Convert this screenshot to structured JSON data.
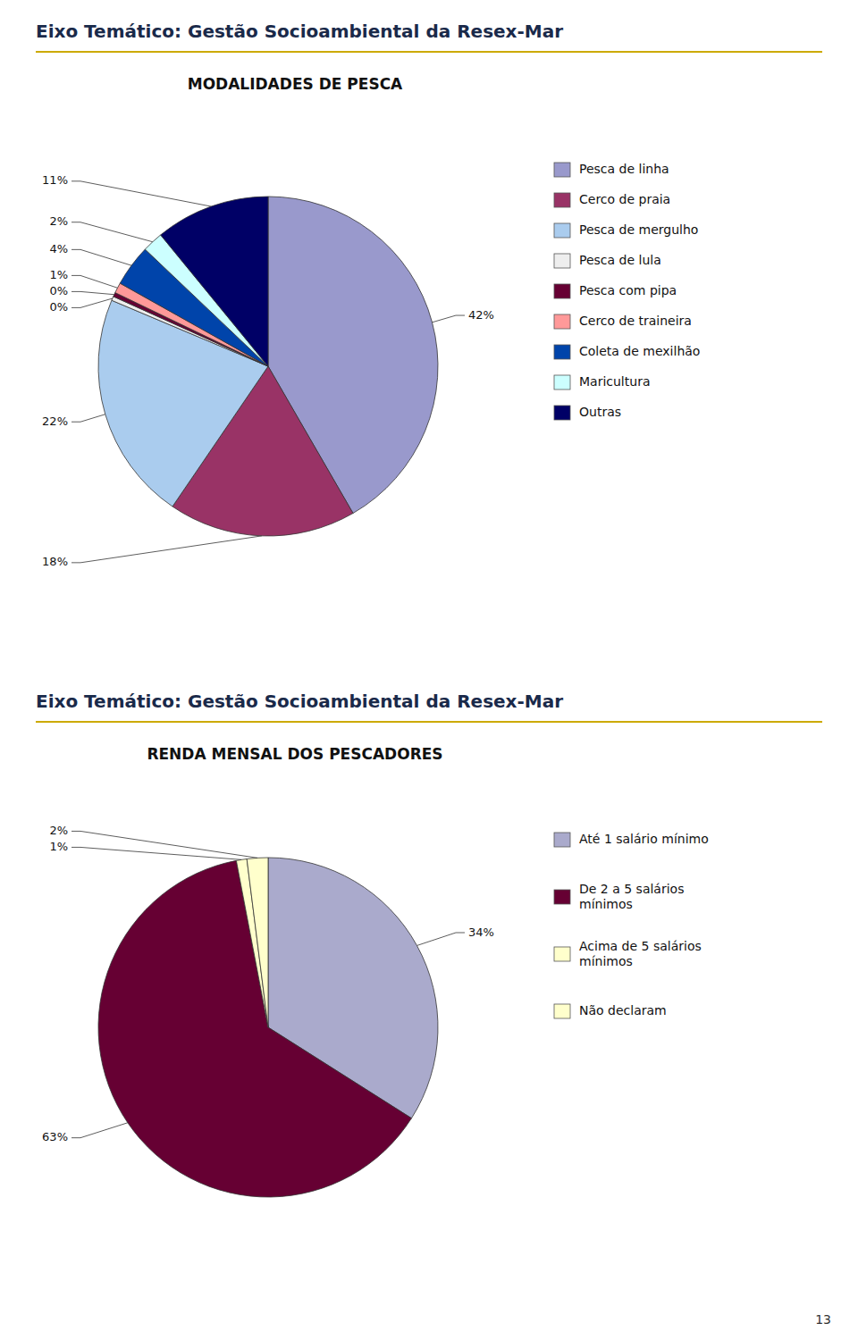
{
  "chart_data": [
    {
      "type": "pie",
      "annotations": [
        "Eixo Temático: Gestão Socioambiental da Resex-Mar"
      ],
      "title": "MODALIDADES  DE PESCA",
      "categories": [
        "Pesca de linha",
        "Cerco de praia",
        "Pesca de mergulho",
        "Pesca de lula",
        "Pesca com pipa",
        "Cerco de traineira",
        "Coleta de mexilhão",
        "Maricultura",
        "Outras"
      ],
      "values": [
        42,
        18,
        22,
        0.4,
        0.4,
        1,
        4,
        2,
        11
      ],
      "value_labels": [
        "42%",
        "18%",
        "22%",
        "0%",
        "0%",
        "1%",
        "4%",
        "2%",
        "11%"
      ],
      "colors": [
        "#9999CC",
        "#993366",
        "#AACCEE",
        "#EEEEEE",
        "#660033",
        "#FF9999",
        "#0044AA",
        "#CCFFFF",
        "#000066"
      ],
      "data_labels": true,
      "legend": "right"
    },
    {
      "type": "pie",
      "annotations": [
        "Eixo Temático: Gestão Socioambiental da Resex-Mar",
        "13"
      ],
      "title": "RENDA MENSAL DOS PESCADORES",
      "categories": [
        "Até 1 salário mínimo",
        "De 2 a 5 salários\nmínimos",
        "Acima de 5 salários\nmínimos",
        "Não declaram"
      ],
      "values": [
        34,
        63,
        1,
        2
      ],
      "value_labels": [
        "34%",
        "63%",
        "1%",
        "2%"
      ],
      "colors": [
        "#AAAACC",
        "#660033",
        "#FFFFCC",
        "#FFFFCC"
      ],
      "data_labels": true,
      "legend": "right"
    }
  ]
}
